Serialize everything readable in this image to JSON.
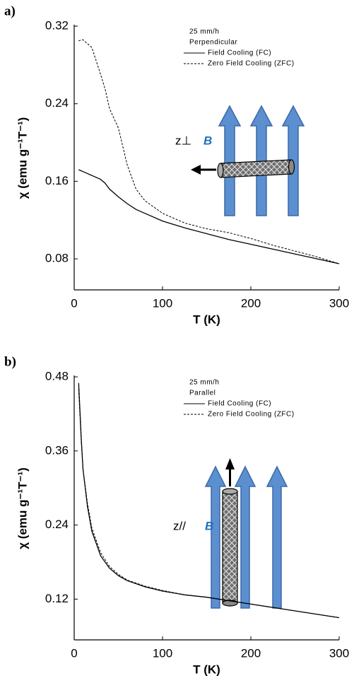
{
  "chart_data": [
    {
      "type": "line",
      "label": "a)",
      "xlabel": "T (K)",
      "ylabel": "χ (emu g⁻¹T⁻¹)",
      "annotations": [
        "25 mm/h",
        "Perpendicular"
      ],
      "inset_labels": [
        "z⊥",
        "B"
      ],
      "x": [
        5,
        10,
        20,
        30,
        35,
        40,
        50,
        60,
        70,
        80,
        100,
        125,
        150,
        175,
        200,
        225,
        250,
        275,
        300
      ],
      "series": [
        {
          "name": "Field Cooling (FC)",
          "color": "#000000",
          "line_style": "solid",
          "values": [
            0.172,
            0.17,
            0.166,
            0.162,
            0.158,
            0.152,
            0.144,
            0.137,
            0.131,
            0.127,
            0.119,
            0.112,
            0.106,
            0.1,
            0.095,
            0.09,
            0.085,
            0.08,
            0.075
          ]
        },
        {
          "name": "Zero Field Cooling (ZFC)",
          "color": "#000000",
          "line_style": "dashed",
          "values": [
            0.305,
            0.306,
            0.298,
            0.27,
            0.255,
            0.235,
            0.215,
            0.177,
            0.152,
            0.14,
            0.127,
            0.117,
            0.111,
            0.107,
            0.101,
            0.094,
            0.088,
            0.082,
            0.075
          ]
        }
      ],
      "xlim": [
        0,
        300
      ],
      "xticks": [
        0,
        100,
        200,
        300
      ],
      "ylim": [
        0.048,
        0.32
      ],
      "yticks": [
        0.08,
        0.16,
        0.24,
        0.32
      ],
      "legend": "upper right"
    },
    {
      "type": "line",
      "label": "b)",
      "xlabel": "T (K)",
      "ylabel": "χ (emu g⁻¹T⁻¹)",
      "annotations": [
        "25 mm/h",
        "Parallel"
      ],
      "inset_labels": [
        "z//",
        "B"
      ],
      "x": [
        5,
        8,
        10,
        15,
        20,
        30,
        40,
        50,
        60,
        80,
        100,
        125,
        150,
        200,
        250,
        300
      ],
      "series": [
        {
          "name": "Field Cooling (FC)",
          "color": "#000000",
          "line_style": "solid",
          "values": [
            0.47,
            0.38,
            0.33,
            0.27,
            0.23,
            0.19,
            0.17,
            0.158,
            0.15,
            0.14,
            0.133,
            0.127,
            0.123,
            0.112,
            0.101,
            0.09
          ]
        },
        {
          "name": "Zero Field Cooling (ZFC)",
          "color": "#000000",
          "line_style": "dashed",
          "values": [
            0.46,
            0.375,
            0.33,
            0.275,
            0.235,
            0.195,
            0.173,
            0.16,
            0.151,
            0.141,
            0.134,
            0.127,
            0.123,
            0.112,
            0.101,
            0.09
          ]
        }
      ],
      "xlim": [
        0,
        300
      ],
      "xticks": [
        0,
        100,
        200,
        300
      ],
      "ylim": [
        0.054,
        0.48
      ],
      "yticks": [
        0.12,
        0.24,
        0.36,
        0.48
      ],
      "legend": "upper right"
    }
  ]
}
